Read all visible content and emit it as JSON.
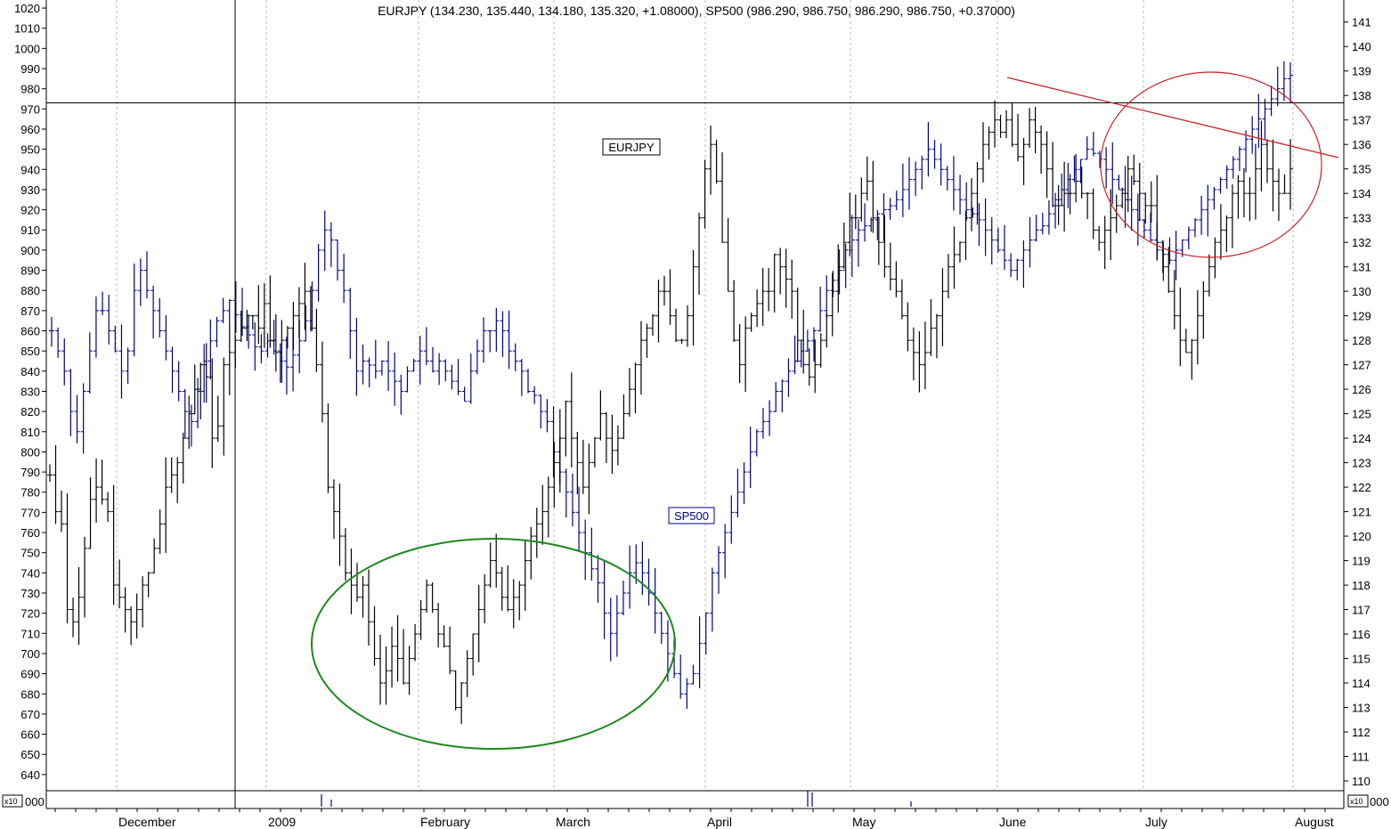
{
  "chart_data": {
    "type": "bar",
    "subtype": "ohlc",
    "title": "EURJPY (134.230, 135.440, 134.180, 135.320, +1.08000), SP500 (986.290, 986.750, 986.290, 986.750, +0.37000)",
    "months": [
      "December",
      "2009",
      "February",
      "March",
      "April",
      "May",
      "June",
      "July",
      "August"
    ],
    "left_axis": {
      "series": "SP500",
      "ylim": [
        632,
        1024
      ],
      "ticks": [
        640,
        650,
        660,
        670,
        680,
        690,
        700,
        710,
        720,
        730,
        740,
        750,
        760,
        770,
        780,
        790,
        800,
        810,
        820,
        830,
        840,
        850,
        860,
        870,
        880,
        890,
        900,
        910,
        920,
        930,
        940,
        950,
        960,
        970,
        980,
        990,
        1000,
        1010,
        1020
      ]
    },
    "right_axis": {
      "series": "EURJPY",
      "ylim": [
        109.6,
        141.9
      ],
      "ticks": [
        110,
        111,
        112,
        113,
        114,
        115,
        116,
        117,
        118,
        119,
        120,
        121,
        122,
        123,
        124,
        125,
        126,
        127,
        128,
        129,
        130,
        131,
        132,
        133,
        134,
        135,
        136,
        137,
        138,
        139,
        140,
        141
      ]
    },
    "multiplier_label": "x10",
    "volume_axis_label": "000",
    "series": [
      {
        "name": "EURJPY",
        "label": "EURJPY",
        "color": "#000000",
        "closes": [
          122.5,
          121,
          120.5,
          117,
          116.5,
          117.5,
          119.5,
          121.5,
          122,
          121.5,
          121,
          118,
          117.5,
          117,
          116.5,
          117,
          118,
          118.5,
          119.5,
          120.5,
          122,
          122.5,
          123,
          124,
          125,
          126,
          127,
          126.5,
          124,
          124.5,
          127,
          127.5,
          128,
          128.5,
          129,
          129,
          128.5,
          129.5,
          128,
          127.5,
          128,
          128.5,
          129,
          129.5,
          130,
          128.5,
          127,
          125,
          122,
          121,
          120,
          118.5,
          118,
          117.5,
          118,
          116.5,
          115,
          114,
          114.5,
          115.5,
          115,
          114,
          115,
          116,
          117,
          118,
          117,
          116,
          115.5,
          114.5,
          113,
          114,
          115,
          116,
          117,
          118,
          119,
          118.5,
          117.5,
          117,
          117.5,
          118,
          119,
          120,
          120.5,
          121,
          122,
          123,
          124,
          125.5,
          124,
          123,
          122,
          123,
          124,
          125,
          124,
          123.5,
          124,
          125,
          126,
          127,
          128,
          128.5,
          129,
          130,
          130,
          129,
          128,
          128,
          129,
          131,
          133,
          135,
          136,
          134.5,
          132,
          130,
          128,
          127,
          128.5,
          129,
          129.5,
          130,
          130,
          131.5,
          131,
          130.5,
          130,
          128,
          127,
          126.5,
          127,
          128,
          129,
          130,
          131,
          132,
          133,
          133,
          134,
          134.5,
          133,
          132,
          131,
          130.5,
          130,
          129,
          128,
          127.5,
          127,
          127.5,
          128.5,
          129,
          130,
          131,
          131.5,
          132,
          133,
          134,
          135,
          136,
          136.5,
          137,
          136.5,
          137,
          136,
          135.5,
          136,
          137,
          136.5,
          136,
          135,
          133.5,
          133.5,
          134,
          134,
          134.5,
          134,
          134,
          132.5,
          132,
          132.5,
          133,
          133.5,
          134,
          135,
          134.5,
          134,
          133.5,
          133.5,
          132,
          131,
          130,
          129,
          128,
          127.5,
          128,
          129,
          130,
          131,
          132,
          132.5,
          133,
          134,
          134.5,
          134,
          134,
          135,
          136,
          135,
          134.5,
          134,
          134,
          135
        ]
      },
      {
        "name": "SP500",
        "label": "SP500",
        "color": "#00008b",
        "closes": [
          860,
          850,
          840,
          820,
          810,
          830,
          850,
          870,
          870,
          860,
          850,
          840,
          850,
          880,
          890,
          880,
          870,
          860,
          850,
          840,
          830,
          820,
          815,
          830,
          845,
          855,
          865,
          870,
          875,
          868,
          862,
          858,
          852,
          850,
          855,
          850,
          845,
          842,
          848,
          855,
          865,
          880,
          900,
          910,
          905,
          890,
          880,
          860,
          840,
          845,
          843,
          840,
          845,
          840,
          835,
          830,
          840,
          845,
          850,
          845,
          840,
          845,
          840,
          835,
          830,
          825,
          840,
          850,
          860,
          860,
          865,
          860,
          850,
          845,
          840,
          830,
          828,
          820,
          815,
          800,
          790,
          780,
          770,
          760,
          750,
          742,
          735,
          720,
          710,
          720,
          730,
          740,
          745,
          740,
          730,
          720,
          710,
          700,
          690,
          680,
          685,
          690,
          705,
          720,
          740,
          750,
          760,
          770,
          780,
          790,
          800,
          810,
          815,
          820,
          830,
          835,
          840,
          845,
          850,
          855,
          860,
          870,
          880,
          885,
          890,
          900,
          905,
          910,
          912,
          915,
          918,
          920,
          922,
          925,
          930,
          935,
          940,
          945,
          950,
          945,
          940,
          935,
          930,
          925,
          920,
          918,
          915,
          910,
          905,
          900,
          895,
          890,
          895,
          900,
          905,
          910,
          912,
          918,
          925,
          930,
          935,
          940,
          945,
          950,
          948,
          945,
          940,
          935,
          930,
          925,
          920,
          915,
          910,
          905,
          900,
          898,
          895,
          900,
          905,
          910,
          915,
          920,
          925,
          930,
          935,
          940,
          945,
          950,
          955,
          960,
          965,
          970,
          975,
          980,
          985,
          986.75
        ]
      }
    ],
    "annotations": {
      "horizontal_line_value": 973,
      "green_ellipse": "Feb–Mar 2009 lows",
      "red_ellipse": "June–July consolidation",
      "red_trendline": "descending resistance"
    },
    "grid": true,
    "legend": "none"
  },
  "colors": {
    "eurjpy": "#000000",
    "sp500": "#00008b",
    "green_ellipse": "#1a8a1a",
    "red_annotation": "#cc2222",
    "grid": "#bbbbbb"
  }
}
